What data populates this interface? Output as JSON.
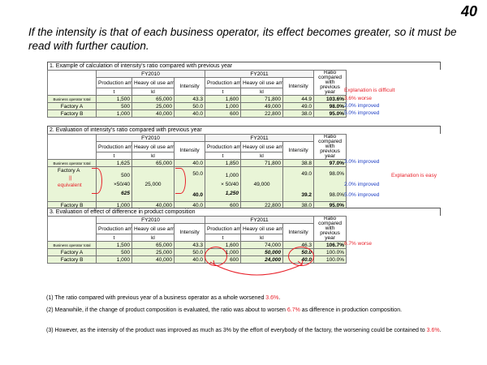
{
  "page_number": "40",
  "header": {
    "text": "If the intensity is that of each business operator, its effect becomes greater, so it must be read with further caution."
  },
  "hdr": {
    "fy2010": "FY2010",
    "fy2011": "FY2011",
    "prod": "Production amount",
    "prod_unit": "t",
    "heavy": "Heavy oil use amount",
    "heavy_unit": "kl",
    "int": "Intensity",
    "int_unit": "kl/t",
    "ratio": "Ratio compared with previous year"
  },
  "sections": {
    "s1": {
      "title": "1. Example of calculation of intensity's ratio compared with previous year",
      "rows": [
        {
          "label": "Business operator total",
          "p10": "1,500",
          "h10": "65,000",
          "i10": "43.3",
          "p11": "1,600",
          "h11": "71,800",
          "i11": "44.9",
          "ratio": "103.6%"
        },
        {
          "label": "Factory A",
          "p10": "500",
          "h10": "25,000",
          "i10": "50.0",
          "p11": "1,000",
          "h11": "49,000",
          "i11": "49.0",
          "ratio": "98.0%"
        },
        {
          "label": "Factory B",
          "p10": "1,000",
          "h10": "40,000",
          "i10": "40.0",
          "p11": "600",
          "h11": "22,800",
          "i11": "38.0",
          "ratio": "95.0%"
        }
      ],
      "notes": {
        "n0": "Explanation is difficult",
        "n1": "3.6% worse",
        "n2": "2.0% improved",
        "n3": "5.0% improved"
      }
    },
    "s2": {
      "title": "2. Evaluation of intensity's ratio compared with previous year",
      "rows": [
        {
          "label": "Business operator total",
          "p10": "1,625",
          "h10": "65,000",
          "i10": "40.0",
          "p11": "1,850",
          "h11": "71,800",
          "i11": "38.8",
          "ratio": "97.0%"
        },
        {
          "label": "Factory B",
          "p10": "1,000",
          "h10": "40,000",
          "i10": "40.0",
          "p11": "600",
          "h11": "22,800",
          "i11": "38.0",
          "ratio": "95.0%"
        }
      ],
      "factoryA": {
        "label": "Factory A",
        "p10a": "500",
        "p10b": "×50/40",
        "p10c": "625",
        "h10": "25,000",
        "i10a": "50.0",
        "i10c": "40.0",
        "p11a": "1,000",
        "p11b": "× 50/40",
        "p11c": "1,250",
        "h11": "49,000",
        "i11a": "49.0",
        "i11c": "39.2",
        "ratio_a": "98.0%",
        "ratio_c": "98.0%",
        "eq_sym": "||",
        "eq_word": "equivalent"
      },
      "notes": {
        "n0": "3.0% improved",
        "n1": "Explanation is easy",
        "n2": "2.0% improved",
        "n3": "5.0% improved"
      }
    },
    "s3": {
      "title": "3. Evaluation of effect of difference in product composition",
      "rows": [
        {
          "label": "Business operator total",
          "p10": "1,500",
          "h10": "65,000",
          "i10": "43.3",
          "p11": "1,600",
          "h11": "74,000",
          "i11": "46.3",
          "ratio": "106.7%"
        },
        {
          "label": "Factory A",
          "p10": "500",
          "h10": "25,000",
          "i10": "50.0",
          "p11": "1,000",
          "h11": "50,000",
          "i11": "50.0",
          "ratio": "100.0%"
        },
        {
          "label": "Factory B",
          "p10": "1,000",
          "h10": "40,000",
          "i10": "40.0",
          "p11": "600",
          "h11": "24,000",
          "i11": "40.0",
          "ratio": "100.0%"
        }
      ],
      "notes": {
        "n0": "6.7% worse"
      }
    }
  },
  "footer": {
    "p1a": "(1) The ratio compared with previous year of a business operator as a whole worsened ",
    "p1b": "3.6%",
    ".p1c": ".",
    "p2a": "(2) Meanwhile, if the change of product composition is evaluated, the ratio was about to worsen ",
    "p2b": "6.7%",
    "p2c": " as difference in production composition.",
    "p3a": "(3) However, as the intensity of the product was improved as much as 3% by the effort of everybody of the factory, the worsening could be contained to ",
    "p3b": "3.6%",
    "p3c": "."
  },
  "colors": {
    "cell_fill": "#e9f5d7",
    "red": "#e8212a",
    "blue": "#1f3fc4"
  }
}
